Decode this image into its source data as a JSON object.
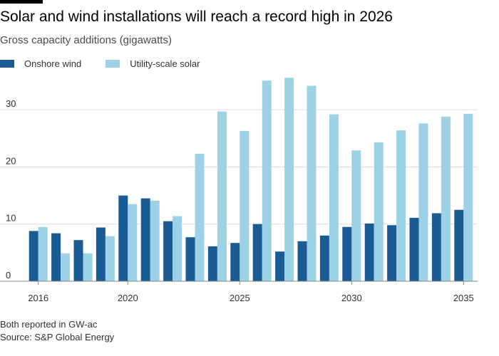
{
  "header": {
    "title": "Solar and wind installations will reach a record high in 2026",
    "subtitle": "Gross capacity additions (gigawatts)"
  },
  "footer": {
    "note": "Both reported in GW-ac",
    "source": "Source: S&P Global Energy"
  },
  "colors": {
    "onshore_wind": "#1a5b93",
    "utility_solar": "#9dd2e6",
    "grid": "#e3ddd8",
    "baseline": "#8a8784",
    "text": "#33302e"
  },
  "chart_data": {
    "type": "bar",
    "title": "Solar and wind installations will reach a record high in 2026",
    "subtitle": "Gross capacity additions (gigawatts)",
    "categories": [
      2016,
      2017,
      2018,
      2019,
      2020,
      2021,
      2022,
      2023,
      2024,
      2025,
      2026,
      2027,
      2028,
      2029,
      2030,
      2031,
      2032,
      2033,
      2034,
      2035
    ],
    "series": [
      {
        "name": "Onshore wind",
        "values": [
          8.8,
          8.4,
          7.2,
          9.4,
          15.0,
          14.5,
          10.5,
          7.7,
          6.1,
          6.7,
          10.0,
          5.2,
          7.0,
          8.0,
          9.5,
          10.1,
          9.8,
          11.1,
          11.9,
          12.5
        ]
      },
      {
        "name": "Utility-scale solar",
        "values": [
          9.5,
          4.9,
          4.9,
          7.9,
          13.5,
          14.1,
          11.4,
          22.3,
          29.7,
          26.3,
          35.1,
          35.6,
          34.2,
          29.2,
          22.9,
          24.3,
          26.4,
          27.6,
          28.8,
          29.3
        ]
      }
    ],
    "x_tick_labels": [
      "2016",
      "2020",
      "2025",
      "2030",
      "2035"
    ],
    "y_ticks": [
      0,
      10,
      20,
      30
    ],
    "ylim": [
      0,
      36.5
    ],
    "xlabel": "",
    "ylabel": "",
    "grid": "horizontal",
    "legend_position": "top-left"
  }
}
